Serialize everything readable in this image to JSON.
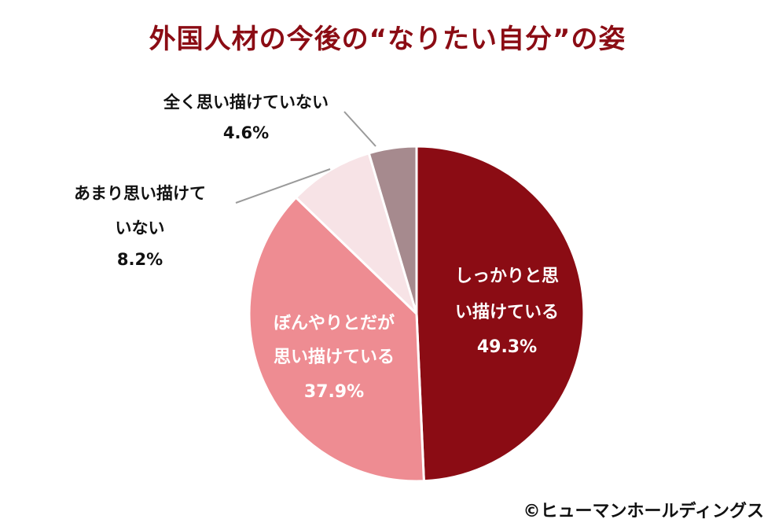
{
  "chart_data": {
    "type": "pie",
    "title": "外国人材の今後の“なりたい自分”の姿",
    "slices": [
      {
        "label_lines": [
          "しっかりと思",
          "い描けている"
        ],
        "percent_label": "49.3%",
        "value": 49.3,
        "color": "#8b0c14",
        "text_color": "#ffffff",
        "label_position": "inside"
      },
      {
        "label_lines": [
          "ぼんやりとだが",
          "思い描けている"
        ],
        "percent_label": "37.9%",
        "value": 37.9,
        "color": "#ee8c92",
        "text_color": "#ffffff",
        "label_position": "inside"
      },
      {
        "label_lines": [
          "あまり思い描けて",
          "いない"
        ],
        "percent_label": "8.2%",
        "value": 8.2,
        "color": "#f7e3e6",
        "text_color": "#111111",
        "label_position": "outside-left"
      },
      {
        "label_lines": [
          "全く思い描けていない"
        ],
        "percent_label": "4.6%",
        "value": 4.6,
        "color": "#a68a8e",
        "text_color": "#111111",
        "label_position": "outside-top"
      }
    ],
    "start_angle": "12 o'clock",
    "direction": "clockwise",
    "legend": "none"
  },
  "copyright": "©ヒューマンホールディングス",
  "colors": {
    "title": "#8b0c14",
    "leader_line": "#9a9a9a",
    "slice_border": "#ffffff"
  }
}
